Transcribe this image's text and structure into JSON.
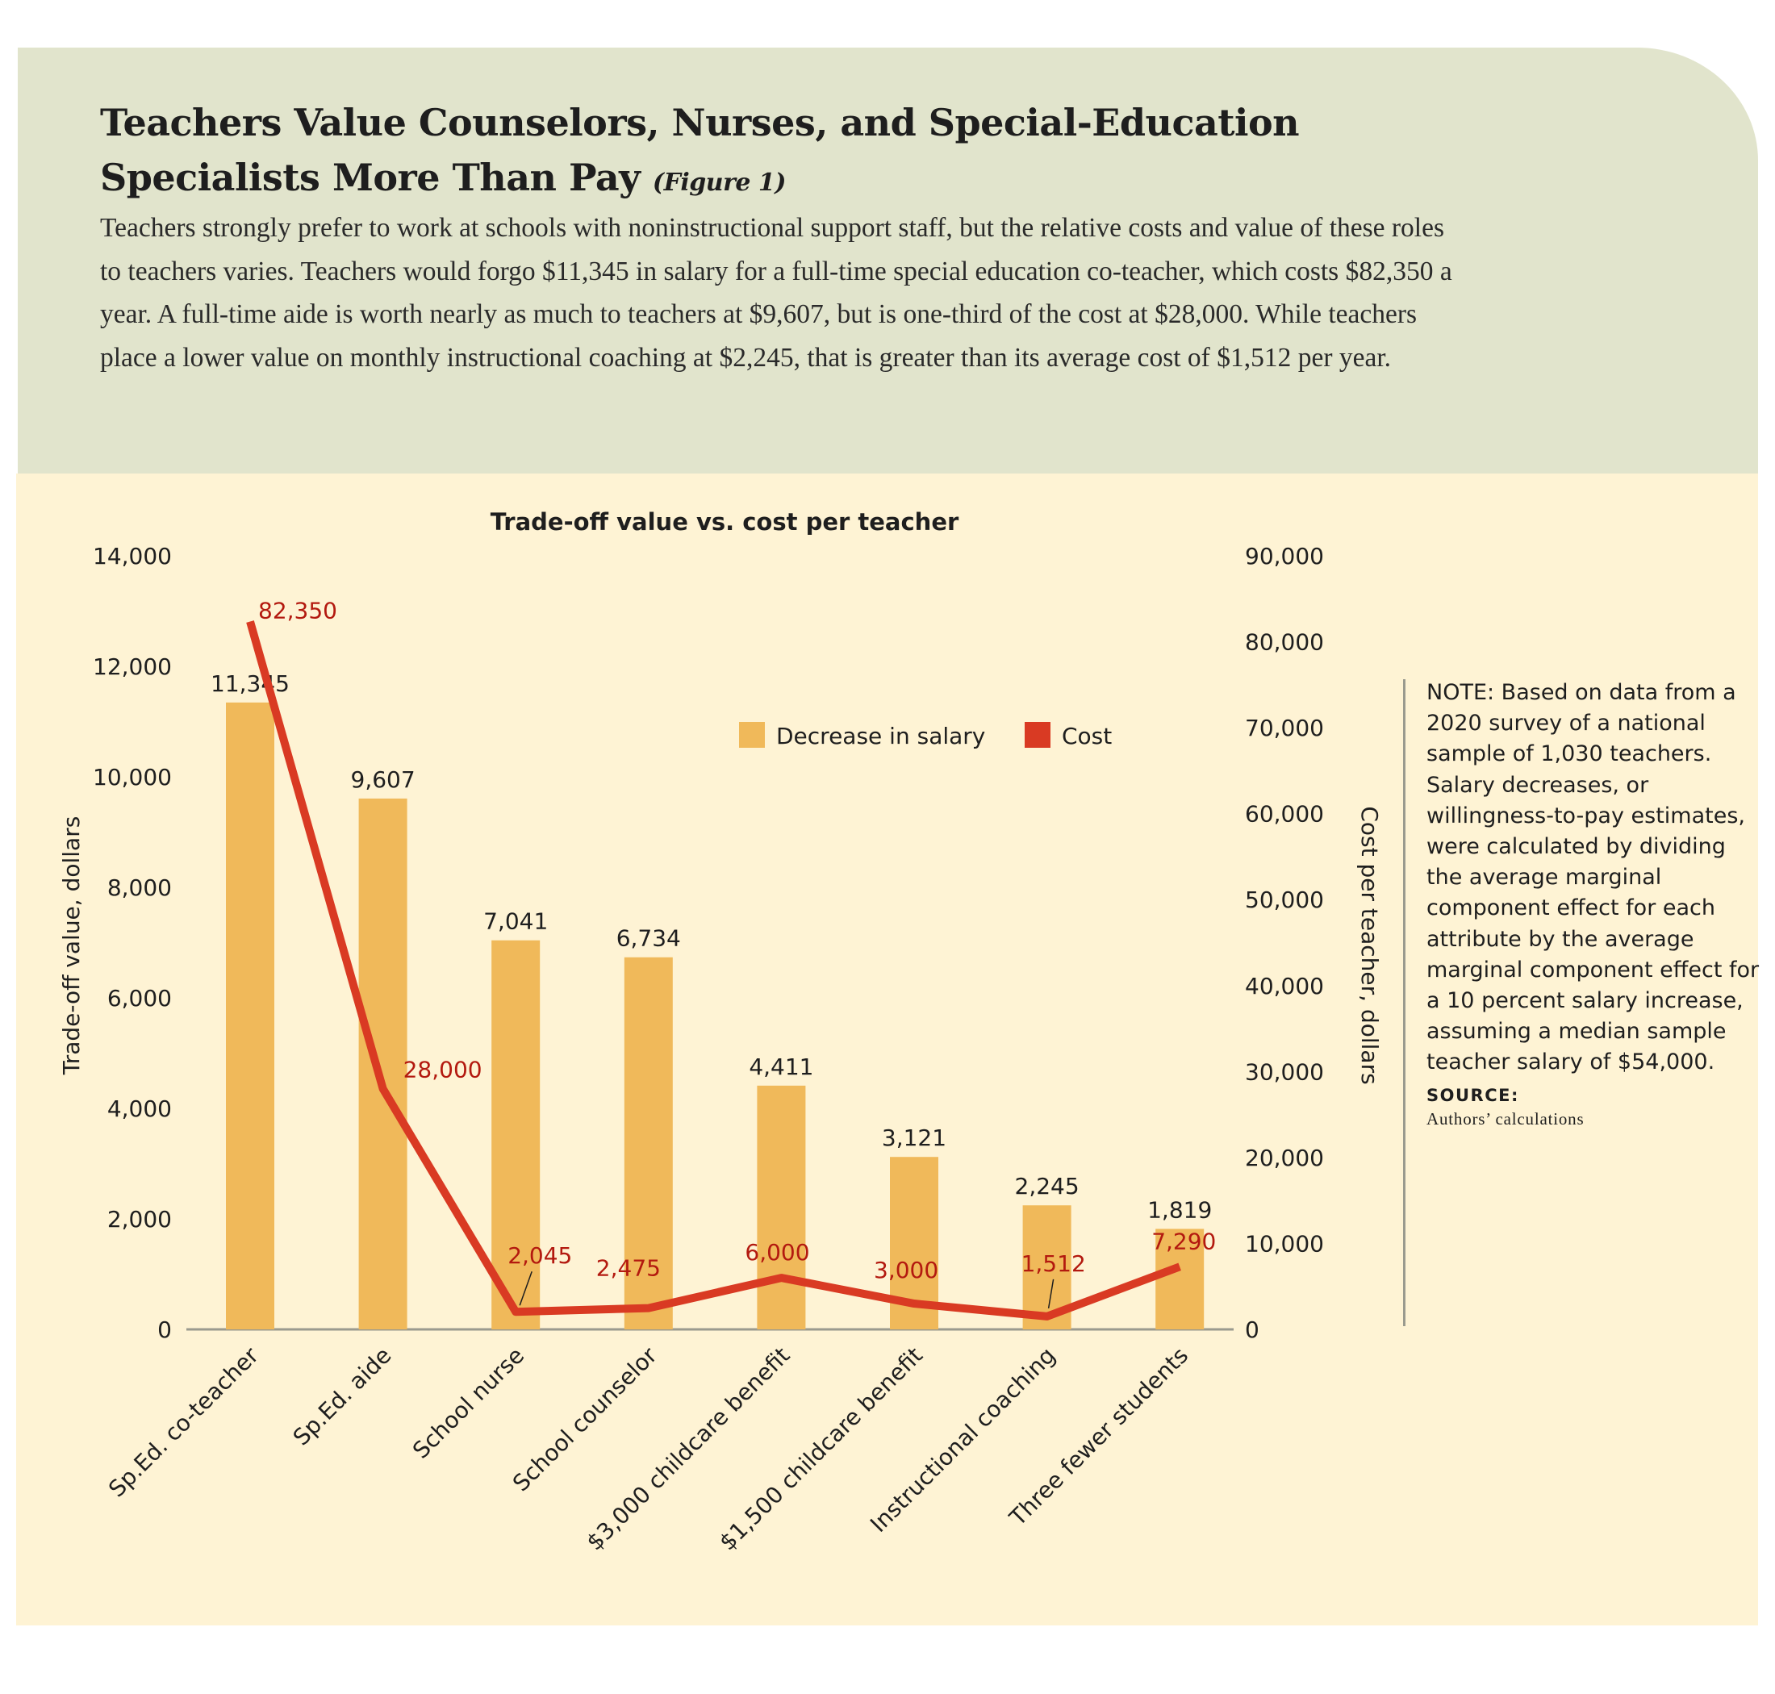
{
  "header": {
    "title": "Teachers Value Counselors, Nurses, and Special-Education Specialists More Than Pay",
    "figure_tag": "(Figure 1)",
    "description": "Teachers strongly prefer to work at schools with noninstructional support staff, but the relative costs and value of these roles to teachers varies. Teachers would forgo $11,345 in salary for a full-time special education co-teacher, which costs $82,350 a year. A full-time aide is worth nearly as much to teachers at $9,607, but is one-third of the cost at $28,000. While teachers place a lower value on monthly instructional coaching at $2,245, that is greater than its average cost of $1,512 per year."
  },
  "note": {
    "text": "NOTE: Based on data from a 2020 survey of a national sample of 1,030 teachers. Salary decreases, or willingness-to-pay estimates, were calculated by dividing the average marginal component effect for each attribute by the average marginal component effect for a 10 percent salary increase, assuming a median sample teacher salary of $54,000.",
    "source_label": "SOURCE:",
    "source_text": "Authors’ calculations"
  },
  "chart_data": {
    "type": "bar+line",
    "title": "Trade-off value vs. cost per teacher",
    "categories": [
      "Sp.Ed. co-teacher",
      "Sp.Ed. aide",
      "School nurse",
      "School counselor",
      "$3,000 childcare benefit",
      "$1,500 childcare benefit",
      "Instructional coaching",
      "Three fewer students"
    ],
    "series": [
      {
        "name": "Decrease in salary",
        "type": "bar",
        "axis": "left",
        "color": "#f0b95a",
        "values": [
          11345,
          9607,
          7041,
          6734,
          4411,
          3121,
          2245,
          1819
        ],
        "labels": [
          "11,345",
          "9,607",
          "7,041",
          "6,734",
          "4,411",
          "3,121",
          "2,245",
          "1,819"
        ]
      },
      {
        "name": "Cost",
        "type": "line",
        "axis": "right",
        "color": "#d93a23",
        "label_color": "#b3190f",
        "values": [
          82350,
          28000,
          2045,
          2475,
          6000,
          3000,
          1512,
          7290
        ],
        "labels": [
          "82,350",
          "28,000",
          "2,045",
          "2,475",
          "6,000",
          "3,000",
          "1,512",
          "7,290"
        ]
      }
    ],
    "ylabel_left": "Trade-off value, dollars",
    "ylabel_right": "Cost per teacher, dollars",
    "ylim_left": [
      0,
      14000
    ],
    "yticks_left": [
      "0",
      "2,000",
      "4,000",
      "6,000",
      "8,000",
      "10,000",
      "12,000",
      "14,000"
    ],
    "ylim_right": [
      0,
      90000
    ],
    "yticks_right": [
      "0",
      "10,000",
      "20,000",
      "30,000",
      "40,000",
      "50,000",
      "60,000",
      "70,000",
      "80,000",
      "90,000"
    ],
    "grid": false,
    "legend_placement": "top-center"
  },
  "colors": {
    "header_bg": "#e1e4cc",
    "chart_bg": "#fef3d4",
    "bar": "#f0b95a",
    "line": "#d93a23"
  }
}
